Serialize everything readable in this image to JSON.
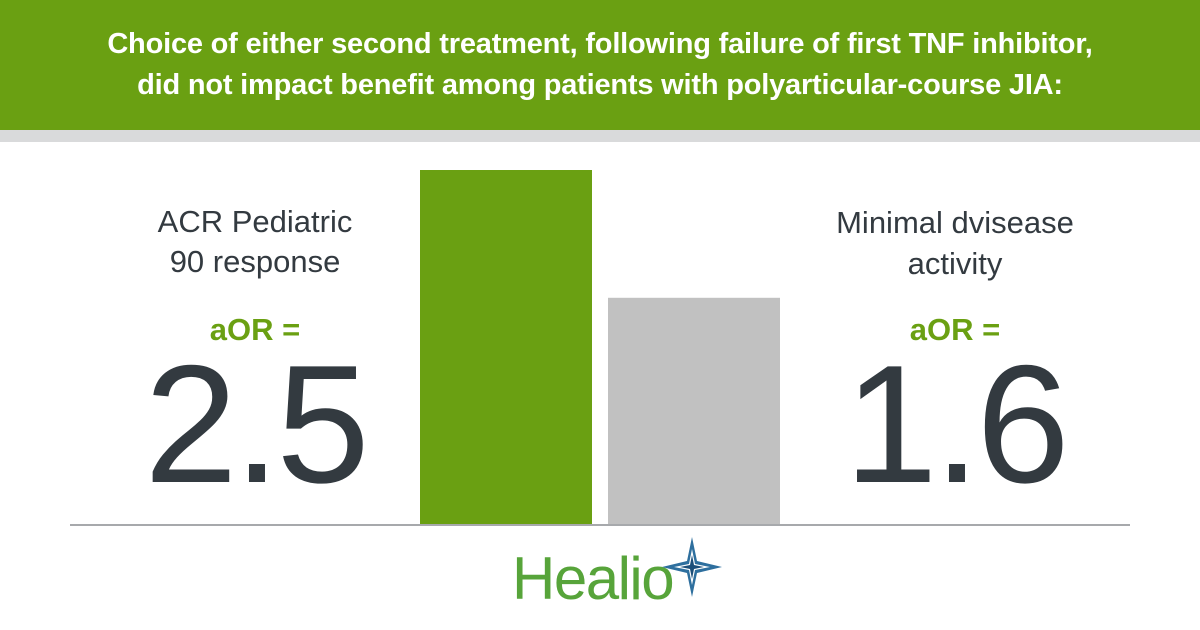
{
  "header": {
    "title": "Choice of either second treatment, following failure of first TNF inhibitor,\ndid not impact benefit among patients with polyarticular-course JIA:"
  },
  "colors": {
    "accent": "#6aa012",
    "secondary": "#c1c1c1",
    "text": "#333a40",
    "baseline": "#a7a9ac"
  },
  "left_stat": {
    "label": "ACR Pediatric\n90 response",
    "metric": "aOR =",
    "value": "2.5"
  },
  "right_stat": {
    "label": "Minimal dvisease\nactivity",
    "metric": "aOR =",
    "value": "1.6"
  },
  "chart_data": {
    "type": "bar",
    "categories": [
      "ACR Pediatric 90 response",
      "Minimal dvisease activity"
    ],
    "values": [
      2.5,
      1.6
    ],
    "ylim": [
      0,
      2.5
    ],
    "grid": false,
    "title": "",
    "xlabel": "",
    "ylabel": ""
  },
  "logo": {
    "text": "Healio",
    "icon": "star-mark-icon"
  }
}
